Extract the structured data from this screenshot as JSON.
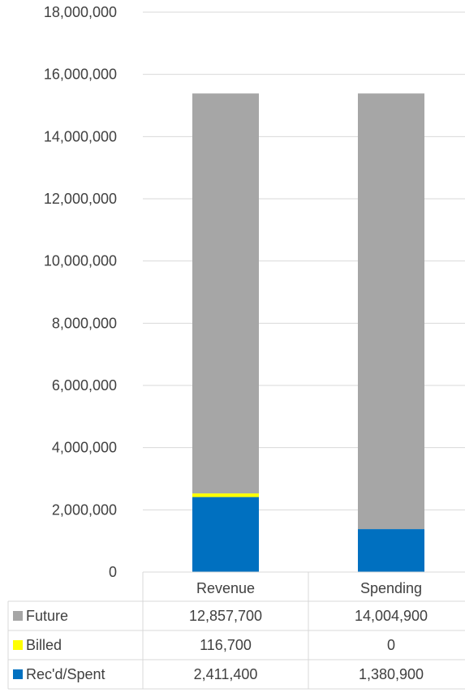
{
  "chart_data": {
    "type": "bar",
    "stacked": true,
    "categories": [
      "Revenue",
      "Spending"
    ],
    "series": [
      {
        "name": "Rec'd/Spent",
        "color": "#0070C0",
        "values": [
          2411400,
          1380900
        ],
        "labels": [
          "2,411,400",
          "1,380,900"
        ]
      },
      {
        "name": "Billed",
        "color": "#FFFF00",
        "values": [
          116700,
          0
        ],
        "labels": [
          "116,700",
          "0"
        ]
      },
      {
        "name": "Future",
        "color": "#A6A6A6",
        "values": [
          12857700,
          14004900
        ],
        "labels": [
          "12,857,700",
          "14,004,900"
        ]
      }
    ],
    "table_row_order": [
      "Future",
      "Billed",
      "Rec'd/Spent"
    ],
    "ylim": [
      0,
      18000000
    ],
    "yticks": [
      0,
      2000000,
      4000000,
      6000000,
      8000000,
      10000000,
      12000000,
      14000000,
      16000000,
      18000000
    ],
    "ytick_labels": [
      "0",
      "2,000,000",
      "4,000,000",
      "6,000,000",
      "8,000,000",
      "10,000,000",
      "12,000,000",
      "14,000,000",
      "16,000,000",
      "18,000,000"
    ],
    "grid": true,
    "legend": "data table",
    "title": "",
    "xlabel": "",
    "ylabel": ""
  }
}
